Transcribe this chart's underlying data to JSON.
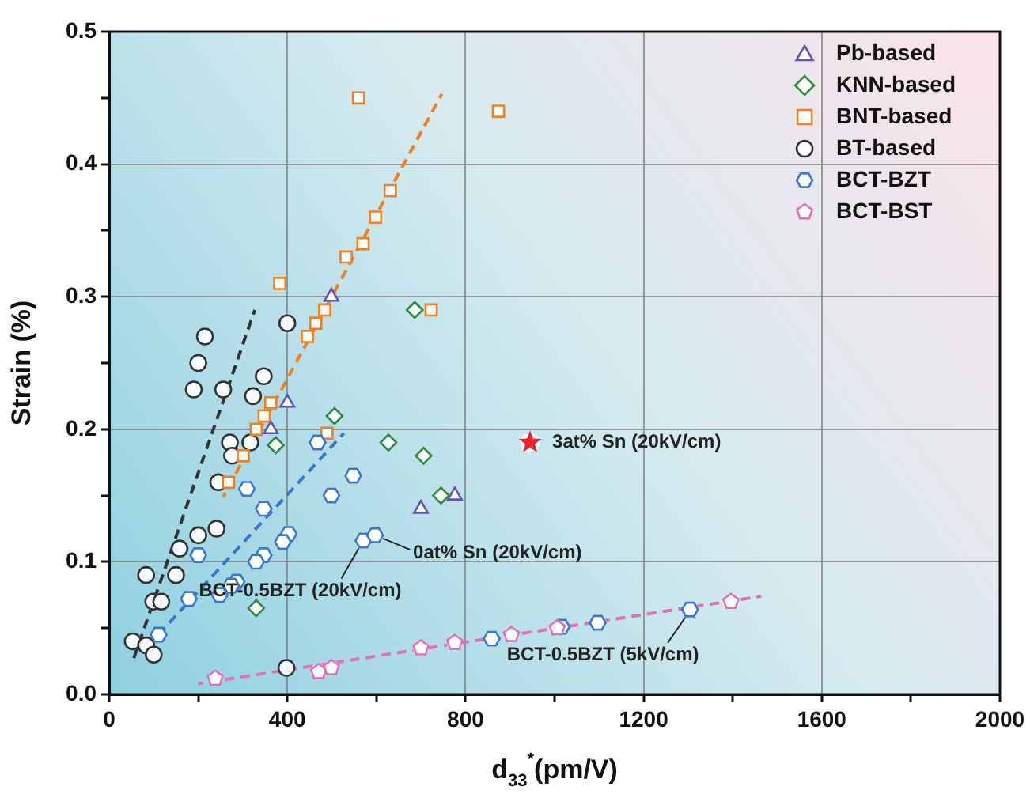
{
  "chart_data": {
    "type": "scatter",
    "xlabel": "d$_{33}$$^{*}$(pm/V)",
    "ylabel": "Strain (%)",
    "xlim": [
      0,
      2000
    ],
    "xticks": [
      0,
      {
        "value": 200,
        "label": null
      },
      400,
      {
        "value": 600,
        "label": null
      },
      800,
      {
        "value": 1000,
        "label": null
      },
      1200,
      {
        "value": 1400,
        "label": null
      },
      1600,
      {
        "value": 1800,
        "label": null
      },
      2000
    ],
    "ylim": [
      0,
      0.5
    ],
    "yticks": [
      {
        "value": 0,
        "label": "0.0"
      },
      {
        "value": 0.05,
        "label": null
      },
      0.1,
      {
        "value": 0.15,
        "label": null
      },
      0.2,
      {
        "value": 0.25,
        "label": null
      },
      0.3,
      {
        "value": 0.35,
        "label": null
      },
      0.4,
      {
        "value": 0.45,
        "label": null
      },
      0.5
    ],
    "grid": true,
    "legend": "top right",
    "series": [
      {
        "name": "Pb-based",
        "color": "#5b57b5",
        "marker": "triangle",
        "x": [
          499,
          400,
          363,
          700,
          776
        ],
        "values": [
          0.3,
          0.22,
          0.2,
          0.14,
          0.15
        ]
      },
      {
        "name": "KNN-based",
        "color": "#2e8b3e",
        "marker": "diamond",
        "x": [
          686,
          506,
          627,
          706,
          374,
          330,
          745
        ],
        "values": [
          0.29,
          0.21,
          0.19,
          0.18,
          0.188,
          0.065,
          0.15
        ]
      },
      {
        "name": "BNT-based",
        "color": "#f08020",
        "marker": "square",
        "x": [
          560,
          631,
          598,
          570,
          532,
          383,
          874,
          723,
          445,
          464,
          484,
          363,
          348,
          330,
          301,
          268,
          489
        ],
        "values": [
          0.45,
          0.38,
          0.36,
          0.34,
          0.33,
          0.31,
          0.44,
          0.29,
          0.27,
          0.28,
          0.29,
          0.22,
          0.21,
          0.2,
          0.18,
          0.16,
          0.197
        ]
      },
      {
        "name": "BT-based",
        "color": "#333333",
        "marker": "circle",
        "x": [
          215,
          200,
          190,
          256,
          400,
          347,
          323,
          271,
          276,
          317,
          245,
          241,
          200,
          158,
          150,
          83,
          99,
          117,
          53,
          83,
          100,
          398
        ],
        "values": [
          0.27,
          0.25,
          0.23,
          0.23,
          0.28,
          0.24,
          0.225,
          0.19,
          0.18,
          0.19,
          0.16,
          0.125,
          0.12,
          0.11,
          0.09,
          0.09,
          0.07,
          0.07,
          0.04,
          0.037,
          0.03,
          0.02
        ]
      },
      {
        "name": "BCT-BZT",
        "color": "#3a78d0",
        "x": [
          468,
          548,
          499,
          309,
          347,
          403,
          390,
          347,
          330,
          200,
          286,
          274,
          248,
          179,
          111,
          571,
          597,
          859,
          1016,
          1097,
          1304
        ],
        "values": [
          0.19,
          0.165,
          0.15,
          0.155,
          0.14,
          0.121,
          0.115,
          0.105,
          0.1,
          0.105,
          0.085,
          0.082,
          0.075,
          0.072,
          0.045,
          0.116,
          0.12,
          0.042,
          0.051,
          0.054,
          0.064
        ]
      },
      {
        "name": "BCT-BST",
        "color": "#e070b8",
        "x": [
          238,
          470,
          499,
          700,
          776,
          903,
          1006,
          1396
        ],
        "values": [
          0.012,
          0.017,
          0.02,
          0.035,
          0.039,
          0.045,
          0.05,
          0.07
        ]
      },
      {
        "color": "#e8232b",
        "marker": "star",
        "x": [
          945
        ],
        "values": [
          0.19
        ]
      },
      {
        "type": "line",
        "color": "#333333",
        "marker": "none",
        "line_style": "dashed",
        "x": [
          55,
          327
        ],
        "values": [
          0.027,
          0.29
        ]
      },
      {
        "type": "line",
        "color": "#f08020",
        "marker": "none",
        "line_style": "dashed",
        "x": [
          256,
          747
        ],
        "values": [
          0.149,
          0.453
        ]
      },
      {
        "type": "line",
        "color": "#3a78d0",
        "marker": "none",
        "line_style": "dashed",
        "x": [
          94,
          527
        ],
        "values": [
          0.039,
          0.197
        ]
      },
      {
        "type": "line",
        "color": "#e070b8",
        "marker": "none",
        "line_style": "dashed",
        "x": [
          200,
          1464
        ],
        "values": [
          0.008,
          0.074
        ]
      }
    ],
    "annotations": [
      {
        "text": "3at% Sn (20kV/cm)",
        "x": 945,
        "y": 0.19
      },
      {
        "text": "0at% Sn (20kV/cm)",
        "x": 597,
        "y": 0.12
      },
      {
        "text": "BCT-0.5BZT (20kV/cm)",
        "x": 571,
        "y": 0.116
      },
      {
        "text": "BCT-0.5BZT (5kV/cm)",
        "x": 1304,
        "y": 0.064
      }
    ]
  }
}
